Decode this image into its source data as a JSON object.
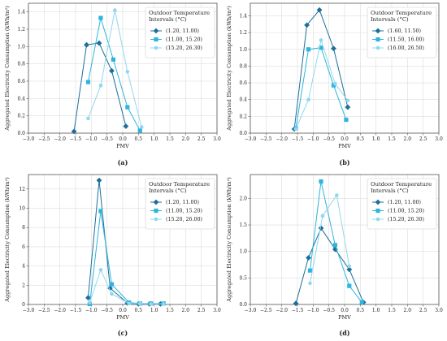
{
  "colors": {
    "series": [
      "#1d6e9a",
      "#2cb5dd",
      "#8fd8ee"
    ],
    "grid": "#dddddd",
    "axis": "#555555"
  },
  "chart_data": [
    {
      "type": "line",
      "panel_label": "(a)",
      "xlabel": "PMV",
      "ylabel": "Aggregated Electricity Consumption (kWh/m²)",
      "xlim": [
        -3.0,
        3.0
      ],
      "ylim": [
        0,
        1.5
      ],
      "xticks": [
        "−3.0",
        "−2.5",
        "−2.0",
        "−1.5",
        "−1.0",
        "−0.5",
        "0.0",
        "0.5",
        "1.0",
        "1.5",
        "2.0",
        "2.5",
        "3.0"
      ],
      "yticks": [
        "0.0",
        "0.2",
        "0.4",
        "0.6",
        "0.8",
        "1.0",
        "1.2",
        "1.4"
      ],
      "ytick_values": [
        0,
        0.2,
        0.4,
        0.6,
        0.8,
        1.0,
        1.2,
        1.4
      ],
      "grid": true,
      "legend_title": [
        "Outdoor Temperature",
        "Intervals (°C)"
      ],
      "legend_position": "top-right",
      "series": [
        {
          "name": "(1.20, 11.00)",
          "marker": "diamond",
          "x": [
            -1.55,
            -1.15,
            -0.75,
            -0.35,
            0.1
          ],
          "y": [
            0.02,
            1.02,
            1.04,
            0.72,
            0.08
          ]
        },
        {
          "name": "(11.00, 15.20)",
          "marker": "square",
          "x": [
            -1.1,
            -0.7,
            -0.3,
            0.15,
            0.55
          ],
          "y": [
            0.59,
            1.33,
            0.85,
            0.3,
            0.03
          ]
        },
        {
          "name": "(15.20, 26.30)",
          "marker": "circle",
          "x": [
            -1.1,
            -0.7,
            -0.25,
            0.15,
            0.6
          ],
          "y": [
            0.17,
            0.55,
            1.42,
            0.71,
            0.07
          ]
        }
      ]
    },
    {
      "type": "line",
      "panel_label": "(b)",
      "xlabel": "PMV",
      "ylabel": "Aggregated Electricity Consumption (kWh/m²)",
      "xlim": [
        -3.0,
        3.0
      ],
      "ylim": [
        0,
        1.55
      ],
      "xticks": [
        "−3.0",
        "−2.5",
        "−2.0",
        "−1.5",
        "−1.0",
        "−0.5",
        "0.0",
        "0.5",
        "1.0",
        "1.5",
        "2.0",
        "2.5",
        "3.0"
      ],
      "yticks": [
        "0.0",
        "0.2",
        "0.4",
        "0.6",
        "0.8",
        "1.0",
        "1.2",
        "1.4"
      ],
      "ytick_values": [
        0,
        0.2,
        0.4,
        0.6,
        0.8,
        1.0,
        1.2,
        1.4
      ],
      "grid": true,
      "legend_title": [
        "Outdoor Temperature",
        "Intervals (°C)"
      ],
      "legend_position": "top-right",
      "series": [
        {
          "name": "(1.60, 11.50)",
          "marker": "diamond",
          "x": [
            -1.6,
            -1.2,
            -0.8,
            -0.35,
            0.1
          ],
          "y": [
            0.05,
            1.29,
            1.47,
            1.01,
            0.31
          ]
        },
        {
          "name": "(11.50, 16.00)",
          "marker": "square",
          "x": [
            -1.55,
            -1.15,
            -0.75,
            -0.35,
            0.05
          ],
          "y": [
            0.06,
            1.0,
            1.02,
            0.57,
            0.16
          ]
        },
        {
          "name": "(16.00, 26.50)",
          "marker": "circle",
          "x": [
            -1.55,
            -1.15,
            -0.75,
            -0.3,
            0.1
          ],
          "y": [
            0.05,
            0.4,
            1.11,
            0.59,
            0.39
          ]
        }
      ]
    },
    {
      "type": "line",
      "panel_label": "(c)",
      "xlabel": "PMV",
      "ylabel": "Aggregated Electricity Consumption (kWh/m²)",
      "xlim": [
        -3.0,
        3.0
      ],
      "ylim": [
        0,
        13.5
      ],
      "xticks": [
        "−3.0",
        "−2.5",
        "−2.0",
        "−1.5",
        "−1.0",
        "−0.5",
        "0.0",
        "0.5",
        "1.0",
        "1.5",
        "2.0",
        "2.5",
        "3.0"
      ],
      "yticks": [
        "0",
        "2",
        "4",
        "6",
        "8",
        "10",
        "12"
      ],
      "ytick_values": [
        0,
        2,
        4,
        6,
        8,
        10,
        12
      ],
      "grid": true,
      "legend_title": [
        "Outdoor Temperature",
        "Intervals (°C)"
      ],
      "legend_position": "top-right",
      "series": [
        {
          "name": "(1.20, 11.00)",
          "marker": "diamond",
          "x": [
            -1.1,
            -0.75,
            -0.4,
            0.15,
            0.5,
            0.85,
            1.2
          ],
          "y": [
            0.7,
            12.9,
            1.7,
            0.15,
            0.05,
            0.05,
            0.05
          ]
        },
        {
          "name": "(11.00, 15.20)",
          "marker": "square",
          "x": [
            -1.05,
            -0.7,
            -0.35,
            0.2,
            0.55,
            0.9,
            1.3
          ],
          "y": [
            0.05,
            9.7,
            2.1,
            0.2,
            0.1,
            0.1,
            0.1
          ]
        },
        {
          "name": "(15.20, 26.00)",
          "marker": "circle",
          "x": [
            -1.05,
            -0.7,
            -0.35,
            0.2,
            0.55,
            0.9,
            1.3
          ],
          "y": [
            0.2,
            3.6,
            1.1,
            0.1,
            0.1,
            0.05,
            0.05
          ]
        }
      ]
    },
    {
      "type": "line",
      "panel_label": "(d)",
      "xlabel": "PMV",
      "ylabel": "Aggregated Electricity Consumption (kWh/m²)",
      "xlim": [
        -3.0,
        3.0
      ],
      "ylim": [
        0,
        2.45
      ],
      "xticks": [
        "−3.0",
        "−2.5",
        "−2.0",
        "−1.5",
        "−1.0",
        "−0.5",
        "0.0",
        "0.5",
        "1.0",
        "1.5",
        "2.0",
        "2.5",
        "3.0"
      ],
      "yticks": [
        "0.0",
        "0.5",
        "1.0",
        "1.5",
        "2.0"
      ],
      "ytick_values": [
        0,
        0.5,
        1.0,
        1.5,
        2.0
      ],
      "grid": true,
      "legend_title": [
        "Outdoor Temperature",
        "Intervals (°C)"
      ],
      "legend_position": "top-right",
      "series": [
        {
          "name": "(1.20, 11.00)",
          "marker": "diamond",
          "x": [
            -1.55,
            -1.15,
            -0.75,
            -0.3,
            0.15,
            0.6
          ],
          "y": [
            0.02,
            0.88,
            1.44,
            1.04,
            0.66,
            0.04
          ]
        },
        {
          "name": "(11.00, 15.20)",
          "marker": "square",
          "x": [
            -1.1,
            -0.75,
            -0.3,
            0.15,
            0.55
          ],
          "y": [
            0.64,
            2.32,
            1.12,
            0.35,
            0.04
          ]
        },
        {
          "name": "(15.20, 26.30)",
          "marker": "circle",
          "x": [
            -1.1,
            -0.7,
            -0.25,
            0.15
          ],
          "y": [
            0.4,
            1.67,
            2.06,
            0.72
          ]
        }
      ]
    }
  ]
}
